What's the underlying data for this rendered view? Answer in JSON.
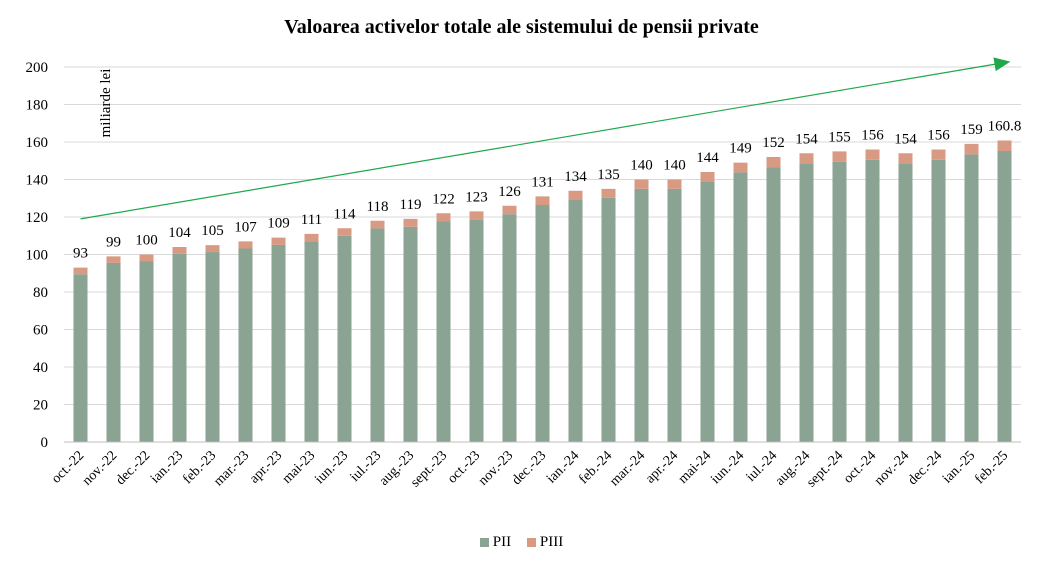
{
  "chart_data": {
    "type": "bar",
    "stacked": true,
    "title": "Valoarea activelor totale ale sistemului de pensii private",
    "ylabel": "miliarde lei",
    "ylim": [
      0,
      200
    ],
    "yticks": [
      0,
      20,
      40,
      60,
      80,
      100,
      120,
      140,
      160,
      180,
      200
    ],
    "grid": true,
    "legend_position": "bottom",
    "categories": [
      "oct.-22",
      "nov.-22",
      "dec.-22",
      "ian.-23",
      "feb.-23",
      "mar.-23",
      "apr.-23",
      "mai-23",
      "iun.-23",
      "iul.-23",
      "aug.-23",
      "sept.-23",
      "oct.-23",
      "nov.-23",
      "dec.-23",
      "ian.-24",
      "feb.-24",
      "mar.-24",
      "apr.-24",
      "mai-24",
      "iun.-24",
      "iul.-24",
      "aug.-24",
      "sept.-24",
      "oct.-24",
      "nov.-24",
      "dec.-24",
      "ian.-25",
      "feb.-25"
    ],
    "series": [
      {
        "name": "PII",
        "color": "#8ba392",
        "values": [
          89.5,
          95.5,
          96.5,
          100.3,
          101.3,
          103.2,
          105.1,
          107.1,
          110.0,
          113.9,
          114.8,
          117.6,
          118.6,
          121.5,
          126.4,
          129.3,
          130.2,
          135.0,
          135.0,
          139.0,
          143.8,
          146.6,
          148.6,
          149.5,
          150.5,
          148.5,
          150.5,
          153.4,
          155.2
        ]
      },
      {
        "name": "PIII",
        "color": "#d99a84",
        "values": [
          3.5,
          3.5,
          3.5,
          3.7,
          3.7,
          3.8,
          3.9,
          3.9,
          4.0,
          4.1,
          4.2,
          4.4,
          4.4,
          4.5,
          4.6,
          4.7,
          4.8,
          5.0,
          5.0,
          5.0,
          5.2,
          5.4,
          5.4,
          5.5,
          5.5,
          5.5,
          5.5,
          5.6,
          5.6
        ]
      }
    ],
    "totals_labels": [
      "93",
      "99",
      "100",
      "104",
      "105",
      "107",
      "109",
      "111",
      "114",
      "118",
      "119",
      "122",
      "123",
      "126",
      "131",
      "134",
      "135",
      "140",
      "140",
      "144",
      "149",
      "152",
      "154",
      "155",
      "156",
      "154",
      "156",
      "159",
      "160.8"
    ],
    "trend_arrow": {
      "color": "#1fa84a",
      "from": {
        "category": "oct.-22",
        "y": 119
      },
      "to": {
        "category": "feb.-25",
        "y": 202
      }
    }
  }
}
